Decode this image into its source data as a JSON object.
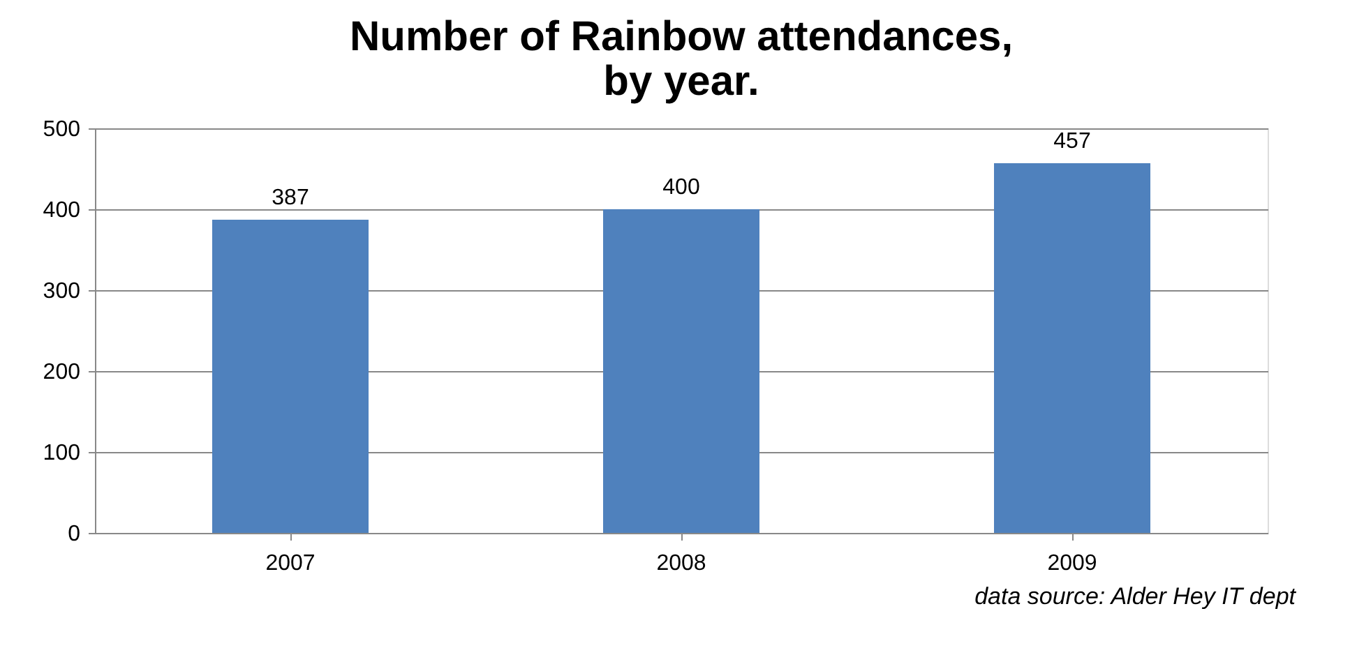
{
  "chart_data": {
    "type": "bar",
    "title": "Number of Rainbow attendances,\nby year.",
    "categories": [
      "2007",
      "2008",
      "2009"
    ],
    "values": [
      387,
      400,
      457
    ],
    "color": "#4f81bd",
    "ylim": [
      0,
      500
    ],
    "yticks": [
      0,
      100,
      200,
      300,
      400,
      500
    ],
    "grid": "y",
    "data_labels": true,
    "annotations": [
      "data source: Alder Hey IT dept"
    ]
  }
}
